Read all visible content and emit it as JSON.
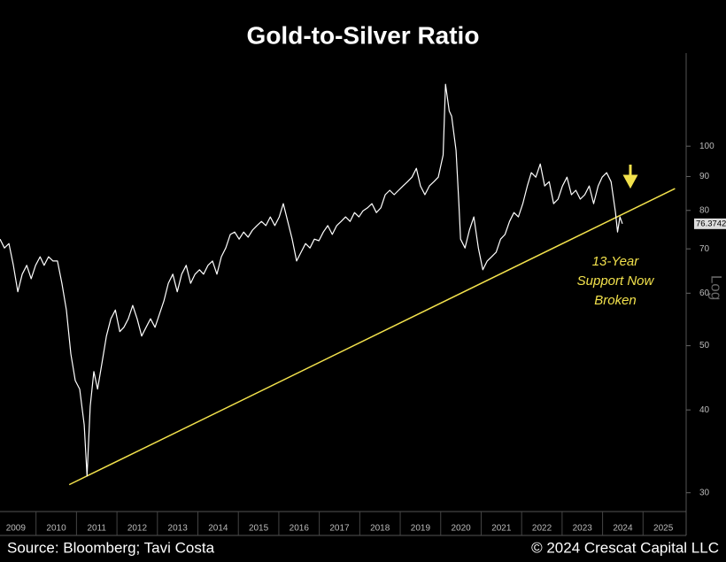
{
  "chart_data": {
    "type": "line",
    "title": "Gold-to-Silver Ratio",
    "y_axis_label": "Log",
    "source": "Source: Bloomberg; Tavi Costa",
    "copyright": "© 2024 Crescat Capital LLC",
    "log_scale": true,
    "xlim": [
      2009.11,
      2026.0
    ],
    "xticks": [
      {
        "value": 2009.5,
        "label": "2009"
      },
      {
        "value": 2010.5,
        "label": "2010"
      },
      {
        "value": 2011.5,
        "label": "2011"
      },
      {
        "value": 2012.5,
        "label": "2012"
      },
      {
        "value": 2013.5,
        "label": "2013"
      },
      {
        "value": 2014.5,
        "label": "2014"
      },
      {
        "value": 2015.5,
        "label": "2015"
      },
      {
        "value": 2016.5,
        "label": "2016"
      },
      {
        "value": 2017.5,
        "label": "2017"
      },
      {
        "value": 2018.5,
        "label": "2018"
      },
      {
        "value": 2019.5,
        "label": "2019"
      },
      {
        "value": 2020.5,
        "label": "2020"
      },
      {
        "value": 2021.5,
        "label": "2021"
      },
      {
        "value": 2022.5,
        "label": "2022"
      },
      {
        "value": 2023.5,
        "label": "2023"
      },
      {
        "value": 2024.5,
        "label": "2024"
      },
      {
        "value": 2025.5,
        "label": "2025"
      }
    ],
    "ylim": [
      28.1,
      134
    ],
    "yticks": [
      30,
      40,
      50,
      60,
      70,
      80,
      90,
      100
    ],
    "series": [
      {
        "name": "Gold-to-Silver Ratio",
        "color": "#ffffff",
        "x": [
          2009.11,
          2009.22,
          2009.33,
          2009.44,
          2009.55,
          2009.66,
          2009.77,
          2009.88,
          2009.99,
          2010.1,
          2010.2,
          2010.31,
          2010.42,
          2010.53,
          2010.64,
          2010.75,
          2010.86,
          2010.97,
          2011.08,
          2011.19,
          2011.26,
          2011.34,
          2011.43,
          2011.52,
          2011.63,
          2011.74,
          2011.85,
          2011.96,
          2012.07,
          2012.17,
          2012.28,
          2012.39,
          2012.5,
          2012.61,
          2012.72,
          2012.83,
          2012.94,
          2013.05,
          2013.16,
          2013.27,
          2013.38,
          2013.49,
          2013.6,
          2013.71,
          2013.82,
          2013.93,
          2014.04,
          2014.14,
          2014.25,
          2014.36,
          2014.47,
          2014.58,
          2014.69,
          2014.8,
          2014.91,
          2015.02,
          2015.13,
          2015.24,
          2015.35,
          2015.46,
          2015.57,
          2015.68,
          2015.79,
          2015.9,
          2016.01,
          2016.11,
          2016.22,
          2016.33,
          2016.44,
          2016.55,
          2016.66,
          2016.77,
          2016.88,
          2016.99,
          2017.1,
          2017.21,
          2017.32,
          2017.43,
          2017.54,
          2017.65,
          2017.76,
          2017.87,
          2017.98,
          2018.08,
          2018.19,
          2018.3,
          2018.41,
          2018.52,
          2018.63,
          2018.74,
          2018.85,
          2018.96,
          2019.07,
          2019.18,
          2019.29,
          2019.4,
          2019.5,
          2019.61,
          2019.72,
          2019.83,
          2019.94,
          2020.06,
          2020.12,
          2020.21,
          2020.27,
          2020.38,
          2020.45,
          2020.49,
          2020.6,
          2020.71,
          2020.82,
          2020.93,
          2021.04,
          2021.15,
          2021.26,
          2021.37,
          2021.48,
          2021.59,
          2021.7,
          2021.81,
          2021.92,
          2022.03,
          2022.14,
          2022.24,
          2022.35,
          2022.46,
          2022.57,
          2022.68,
          2022.79,
          2022.9,
          2023.01,
          2023.12,
          2023.23,
          2023.34,
          2023.45,
          2023.56,
          2023.67,
          2023.78,
          2023.89,
          2023.99,
          2024.1,
          2024.21,
          2024.32,
          2024.37,
          2024.43,
          2024.49
        ],
        "values": [
          72.4,
          70.2,
          71.3,
          66.1,
          60.3,
          64.1,
          66.1,
          63.1,
          66.1,
          68.1,
          66.1,
          68.1,
          67.1,
          67.1,
          62.1,
          56.6,
          48.6,
          44.3,
          43.0,
          38.0,
          31.8,
          40.5,
          45.7,
          43.0,
          47.1,
          51.7,
          54.9,
          56.6,
          52.5,
          53.3,
          54.9,
          57.5,
          54.9,
          51.7,
          53.3,
          54.9,
          53.3,
          55.8,
          58.4,
          62.1,
          64.1,
          60.3,
          64.1,
          66.1,
          62.1,
          64.1,
          65.1,
          64.1,
          66.1,
          67.1,
          64.1,
          68.1,
          70.2,
          73.6,
          74.2,
          72.4,
          74.2,
          72.9,
          74.7,
          75.9,
          77.0,
          75.9,
          78.2,
          75.9,
          78.2,
          81.9,
          77.0,
          72.4,
          67.1,
          69.2,
          71.3,
          70.2,
          72.4,
          72.0,
          74.2,
          75.9,
          73.6,
          75.9,
          77.0,
          78.2,
          77.0,
          79.4,
          78.2,
          79.9,
          80.7,
          81.9,
          79.4,
          80.7,
          84.5,
          85.8,
          84.5,
          85.8,
          87.1,
          88.4,
          89.8,
          92.6,
          87.1,
          84.5,
          87.1,
          88.4,
          89.8,
          97.0,
          124,
          113,
          111,
          98.5,
          81.9,
          72.4,
          70.2,
          74.7,
          78.2,
          70.2,
          65.1,
          67.1,
          68.1,
          69.2,
          72.4,
          73.6,
          77.0,
          79.4,
          78.2,
          81.9,
          87.1,
          91.2,
          89.8,
          94.0,
          87.1,
          88.4,
          81.9,
          83.2,
          87.1,
          89.8,
          84.5,
          85.8,
          83.2,
          84.5,
          87.1,
          81.9,
          87.1,
          89.8,
          91.2,
          88.4,
          79.4,
          74.2,
          78.2,
          76.3742
        ]
      }
    ],
    "trendline": {
      "x": [
        2010.82,
        2025.79
      ],
      "values": [
        30.85,
        86.3
      ],
      "color": "#f2e14c"
    },
    "annotation": {
      "lines": [
        "13-Year",
        "Support Now",
        "Broken"
      ],
      "color": "#f2e14c"
    }
  }
}
